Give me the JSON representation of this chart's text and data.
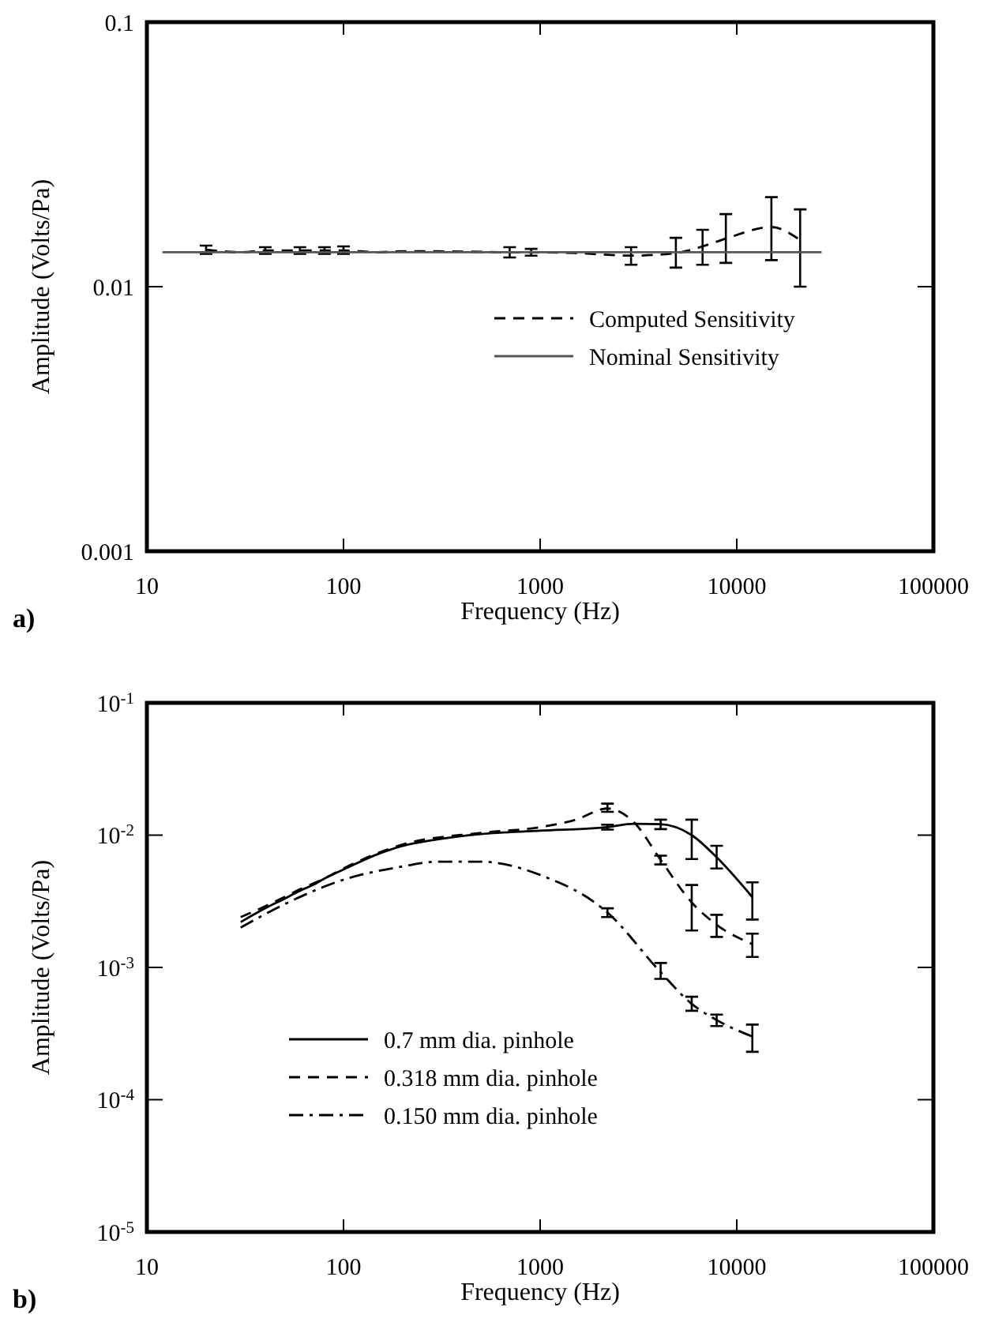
{
  "chart_data": [
    {
      "type": "line",
      "xlabel": "Frequency (Hz)",
      "ylabel": "Amplitude (Volts/Pa)",
      "log": "xy",
      "xlim": [
        10,
        100000
      ],
      "ylim": [
        0.001,
        0.1
      ],
      "xticks": [
        10,
        100,
        1000,
        10000,
        100000
      ],
      "yticks": [
        0.001,
        0.01,
        0.1
      ],
      "legend": "right",
      "marker": "none",
      "annotations": [
        "a)"
      ],
      "series": [
        {
          "name": "Computed Sensitivity",
          "color": "#000000",
          "line_style": "dashed",
          "x": [
            20,
            30,
            40,
            60,
            80,
            100,
            150,
            200,
            300,
            700,
            900,
            1500,
            2900,
            4900,
            6700,
            8800,
            15000,
            21000
          ],
          "values": [
            0.0138,
            0.0135,
            0.0137,
            0.0137,
            0.0137,
            0.0137,
            0.0135,
            0.0136,
            0.0136,
            0.0135,
            0.0135,
            0.0134,
            0.0131,
            0.0134,
            0.0142,
            0.0152,
            0.0168,
            0.015
          ],
          "errors": [
            [
              0.0133,
              0.0143
            ],
            null,
            [
              0.0133,
              0.0141
            ],
            [
              0.0133,
              0.0141
            ],
            [
              0.0133,
              0.0141
            ],
            [
              0.0133,
              0.0142
            ],
            null,
            null,
            null,
            [
              0.0129,
              0.0141
            ],
            [
              0.0131,
              0.0139
            ],
            null,
            [
              0.0121,
              0.0141
            ],
            [
              0.0118,
              0.0153
            ],
            [
              0.0121,
              0.0164
            ],
            [
              0.0123,
              0.0188
            ],
            [
              0.0126,
              0.0218
            ],
            [
              0.01,
              0.0196
            ]
          ]
        },
        {
          "name": "Nominal Sensitivity",
          "color": "#555555",
          "line_style": "solid",
          "x": [
            12,
            27000
          ],
          "values": [
            0.0135,
            0.0135
          ]
        }
      ]
    },
    {
      "type": "line",
      "xlabel": "Frequency (Hz)",
      "ylabel": "Amplitude (Volts/Pa)",
      "log": "xy",
      "xlim": [
        10,
        100000
      ],
      "ylim": [
        1e-05,
        0.1
      ],
      "xticks": [
        10,
        100,
        1000,
        10000,
        100000
      ],
      "yticks": [
        {
          "value": 1e-05,
          "label": "10$^{-5}$"
        },
        {
          "value": 0.0001,
          "label": "10$^{-4}$"
        },
        {
          "value": 0.001,
          "label": "10$^{-3}$"
        },
        {
          "value": 0.01,
          "label": "10$^{-2}$"
        },
        {
          "value": 0.1,
          "label": "10$^{-1}$"
        }
      ],
      "legend": "bottom left",
      "marker": "none",
      "annotations": [
        "b)"
      ],
      "series": [
        {
          "name": "0.7 mm dia. pinhole",
          "color": "#000000",
          "line_style": "solid",
          "x": [
            30,
            40,
            50,
            60,
            70,
            80,
            100,
            150,
            200,
            300,
            500,
            1000,
            2200,
            3000,
            4100,
            5900,
            7900,
            12000
          ],
          "values": [
            0.0022,
            0.0028,
            0.0033,
            0.0038,
            0.0042,
            0.0047,
            0.0055,
            0.0072,
            0.0083,
            0.0093,
            0.0102,
            0.0108,
            0.0115,
            0.0122,
            0.0121,
            0.01,
            0.0068,
            0.0034
          ],
          "errors": [
            null,
            null,
            null,
            null,
            null,
            null,
            null,
            null,
            null,
            null,
            null,
            null,
            [
              0.011,
              0.012
            ],
            null,
            [
              0.0111,
              0.0131
            ],
            [
              0.0066,
              0.0131
            ],
            [
              0.0056,
              0.0083
            ],
            [
              0.0023,
              0.0044
            ]
          ]
        },
        {
          "name": "0.318 mm dia. pinhole",
          "color": "#000000",
          "line_style": "dashed",
          "x": [
            30,
            40,
            50,
            60,
            80,
            100,
            200,
            500,
            1000,
            1500,
            2200,
            3000,
            4100,
            5900,
            7900,
            12000
          ],
          "values": [
            0.0024,
            0.0029,
            0.0034,
            0.0039,
            0.0047,
            0.0056,
            0.0085,
            0.0104,
            0.0115,
            0.013,
            0.0159,
            0.0125,
            0.0065,
            0.0031,
            0.0021,
            0.0015
          ],
          "errors": [
            null,
            null,
            null,
            null,
            null,
            null,
            null,
            null,
            null,
            null,
            [
              0.015,
              0.0173
            ],
            null,
            [
              0.006,
              0.007
            ],
            [
              0.0019,
              0.0042
            ],
            [
              0.0017,
              0.0025
            ],
            [
              0.0012,
              0.0018
            ]
          ]
        },
        {
          "name": "0.150 mm dia. pinhole",
          "color": "#000000",
          "line_style": "dashdot",
          "x": [
            30,
            50,
            100,
            200,
            300,
            500,
            1000,
            2200,
            4100,
            5900,
            7900,
            12000
          ],
          "values": [
            0.002,
            0.003,
            0.0046,
            0.0058,
            0.0063,
            0.0063,
            0.005,
            0.0026,
            0.00092,
            0.00053,
            0.0004,
            0.0003
          ],
          "errors": [
            null,
            null,
            null,
            null,
            null,
            null,
            null,
            [
              0.0024,
              0.0028
            ],
            [
              0.00082,
              0.00108
            ],
            [
              0.00047,
              0.0006
            ],
            [
              0.00036,
              0.00044
            ],
            [
              0.00023,
              0.00037
            ]
          ]
        }
      ]
    }
  ]
}
